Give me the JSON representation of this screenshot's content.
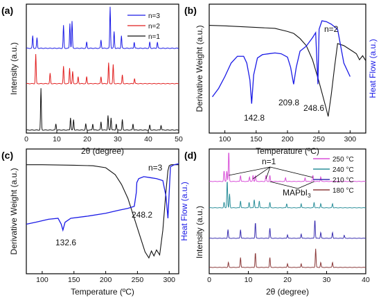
{
  "chart_data": [
    {
      "panel": "(a)",
      "type": "line",
      "xlabel": "2θ (degree)",
      "ylabel": "Intensity (a.u.)",
      "xlim": [
        0,
        50
      ],
      "xticks": [
        "0",
        "10",
        "20",
        "30",
        "40",
        "50"
      ],
      "legend_position": "top-right",
      "series": [
        {
          "name": "n=3",
          "color": "#1a1ae6",
          "peaks": [
            [
              2.1,
              0.3
            ],
            [
              3.5,
              0.25
            ],
            [
              12.2,
              0.55
            ],
            [
              14.3,
              0.6
            ],
            [
              15.0,
              0.65
            ],
            [
              19.8,
              0.15
            ],
            [
              24.5,
              0.2
            ],
            [
              27.5,
              1.0
            ],
            [
              28.8,
              0.4
            ],
            [
              31.2,
              0.3
            ],
            [
              35.4,
              0.15
            ],
            [
              40.5,
              0.15
            ],
            [
              43.0,
              0.15
            ]
          ]
        },
        {
          "name": "n=2",
          "color": "#e11e1e",
          "peaks": [
            [
              3.1,
              0.85
            ],
            [
              7.8,
              0.3
            ],
            [
              12.2,
              0.5
            ],
            [
              14.2,
              0.45
            ],
            [
              15.2,
              0.35
            ],
            [
              17.0,
              0.2
            ],
            [
              19.8,
              0.2
            ],
            [
              24.5,
              0.2
            ],
            [
              27.0,
              0.6
            ],
            [
              28.5,
              0.55
            ],
            [
              31.5,
              0.25
            ],
            [
              35.5,
              0.15
            ]
          ]
        },
        {
          "name": "n=1",
          "color": "#111111",
          "peaks": [
            [
              4.8,
              1.0
            ],
            [
              9.7,
              0.15
            ],
            [
              14.5,
              0.3
            ],
            [
              15.5,
              0.25
            ],
            [
              19.5,
              0.15
            ],
            [
              21.8,
              0.15
            ],
            [
              24.5,
              0.2
            ],
            [
              26.8,
              0.35
            ],
            [
              27.8,
              0.3
            ],
            [
              29.5,
              0.15
            ],
            [
              31.5,
              0.25
            ],
            [
              35.0,
              0.15
            ],
            [
              40.5,
              0.12
            ],
            [
              44.2,
              0.12
            ]
          ]
        }
      ]
    },
    {
      "panel": "(b)",
      "type": "line",
      "xlabel": "Temperature (ºC)",
      "ylabel_left": "Derivative Weight (a.u.)",
      "ylabel_right": "Heat Flow (a.u.)",
      "xlim": [
        75,
        325
      ],
      "xticks": [
        "100",
        "150",
        "200",
        "250",
        "300"
      ],
      "annotation": "n=2",
      "peak_labels": [
        "142.8",
        "209.8",
        "248.6"
      ],
      "series": [
        {
          "name": "Derivative Weight",
          "color": "#111111",
          "x": [
            75,
            100,
            150,
            180,
            200,
            210,
            220,
            230,
            240,
            250,
            260,
            265,
            270,
            275,
            280,
            290,
            300,
            310,
            315,
            320,
            325
          ],
          "y": [
            0.9,
            0.895,
            0.88,
            0.87,
            0.84,
            0.82,
            0.77,
            0.7,
            0.56,
            0.35,
            0.12,
            0.0,
            0.22,
            0.48,
            0.72,
            0.7,
            0.66,
            0.62,
            0.56,
            0.6,
            0.55
          ]
        },
        {
          "name": "Heat Flow",
          "color": "#1a1ae6",
          "x": [
            80,
            90,
            100,
            110,
            120,
            130,
            135,
            140,
            142.8,
            146,
            152,
            160,
            170,
            180,
            190,
            200,
            205,
            209.8,
            214,
            220,
            230,
            240,
            245,
            248.6,
            250.5,
            255,
            262,
            270,
            280,
            290,
            300
          ],
          "y": [
            0.1,
            0.2,
            0.34,
            0.5,
            0.58,
            0.58,
            0.5,
            0.3,
            0.02,
            0.36,
            0.56,
            0.6,
            0.61,
            0.62,
            0.61,
            0.57,
            0.45,
            0.25,
            0.45,
            0.64,
            0.7,
            0.8,
            0.86,
            0.25,
            0.9,
            1.0,
            0.99,
            0.96,
            0.9,
            0.5,
            0.34
          ]
        }
      ]
    },
    {
      "panel": "(c)",
      "type": "line",
      "xlabel": "Temperature (ºC)",
      "ylabel_left": "Derivative Weight (a.u.)",
      "ylabel_right": "Heat Flow (a.u.)",
      "xlim": [
        75,
        315
      ],
      "xticks": [
        "100",
        "150",
        "200",
        "250",
        "300"
      ],
      "annotation": "n=3",
      "peak_labels": [
        "248.2",
        "132.6"
      ],
      "series": [
        {
          "name": "Derivative Weight",
          "color": "#111111",
          "x": [
            75,
            100,
            150,
            180,
            200,
            215,
            225,
            235,
            245,
            255,
            262,
            268,
            272,
            276,
            280,
            285,
            290,
            295,
            298,
            300,
            303,
            306,
            310,
            315
          ],
          "y": [
            0.96,
            0.96,
            0.955,
            0.95,
            0.93,
            0.86,
            0.76,
            0.62,
            0.42,
            0.22,
            0.08,
            0.02,
            0.09,
            0.04,
            0.1,
            0.05,
            0.3,
            0.7,
            0.9,
            0.95,
            0.96,
            0.96,
            0.96,
            0.96
          ]
        },
        {
          "name": "Heat Flow",
          "color": "#1a1ae6",
          "x": [
            75,
            90,
            110,
            125,
            130,
            132.6,
            136,
            145,
            170,
            200,
            220,
            235,
            245,
            248.2,
            249,
            252,
            260,
            270,
            280,
            290,
            295,
            298,
            302,
            308,
            315
          ],
          "y": [
            0.36,
            0.38,
            0.41,
            0.42,
            0.36,
            0.3,
            0.38,
            0.42,
            0.44,
            0.47,
            0.5,
            0.52,
            0.54,
            0.68,
            0.78,
            0.82,
            0.84,
            0.83,
            0.82,
            0.8,
            0.64,
            0.42,
            0.94,
            0.96,
            0.97
          ]
        }
      ]
    },
    {
      "panel": "(d)",
      "type": "line",
      "xlabel": "2θ (degree)",
      "ylabel": "Intensity (a.u.)",
      "xlim": [
        0,
        40
      ],
      "xticks": [
        "0",
        "10",
        "20",
        "30",
        "40"
      ],
      "legend_position": "top-right",
      "annotations": [
        "n=1",
        "MAPbI3"
      ],
      "series": [
        {
          "name": "250 °C",
          "color": "#d84fd8",
          "peaks": [
            [
              3.8,
              0.35
            ],
            [
              4.5,
              0.35
            ],
            [
              5.0,
              1.0
            ],
            [
              8.0,
              0.2
            ],
            [
              10.3,
              0.15
            ],
            [
              11.2,
              0.2
            ],
            [
              11.8,
              0.2
            ],
            [
              14.5,
              0.2
            ],
            [
              15.5,
              0.2
            ],
            [
              19.5,
              0.12
            ],
            [
              24.5,
              0.12
            ],
            [
              26.5,
              0.2
            ],
            [
              28.5,
              0.15
            ]
          ]
        },
        {
          "name": "240 °C",
          "color": "#2b8f9a",
          "peaks": [
            [
              3.8,
              0.2
            ],
            [
              4.6,
              1.0
            ],
            [
              5.2,
              0.5
            ],
            [
              8.0,
              0.25
            ],
            [
              10.2,
              0.2
            ],
            [
              11.5,
              0.3
            ],
            [
              12.8,
              0.25
            ],
            [
              15.5,
              0.2
            ],
            [
              19.8,
              0.15
            ],
            [
              23.5,
              0.15
            ],
            [
              26.8,
              0.2
            ],
            [
              28.5,
              0.15
            ],
            [
              31.5,
              0.15
            ]
          ]
        },
        {
          "name": "210 °C",
          "color": "#3a2fb0",
          "peaks": [
            [
              4.8,
              0.3
            ],
            [
              8.0,
              0.3
            ],
            [
              11.8,
              0.55
            ],
            [
              15.5,
              0.35
            ],
            [
              20.0,
              0.12
            ],
            [
              23.5,
              0.15
            ],
            [
              27.0,
              0.65
            ],
            [
              28.5,
              0.2
            ],
            [
              31.5,
              0.2
            ],
            [
              34.5,
              0.1
            ]
          ]
        },
        {
          "name": "180 °C",
          "color": "#8b3a3a",
          "peaks": [
            [
              4.9,
              0.2
            ],
            [
              8.0,
              0.4
            ],
            [
              11.8,
              0.6
            ],
            [
              15.5,
              0.4
            ],
            [
              20.0,
              0.15
            ],
            [
              23.5,
              0.15
            ],
            [
              27.2,
              0.75
            ],
            [
              28.5,
              0.2
            ],
            [
              31.5,
              0.2
            ]
          ]
        }
      ]
    }
  ]
}
